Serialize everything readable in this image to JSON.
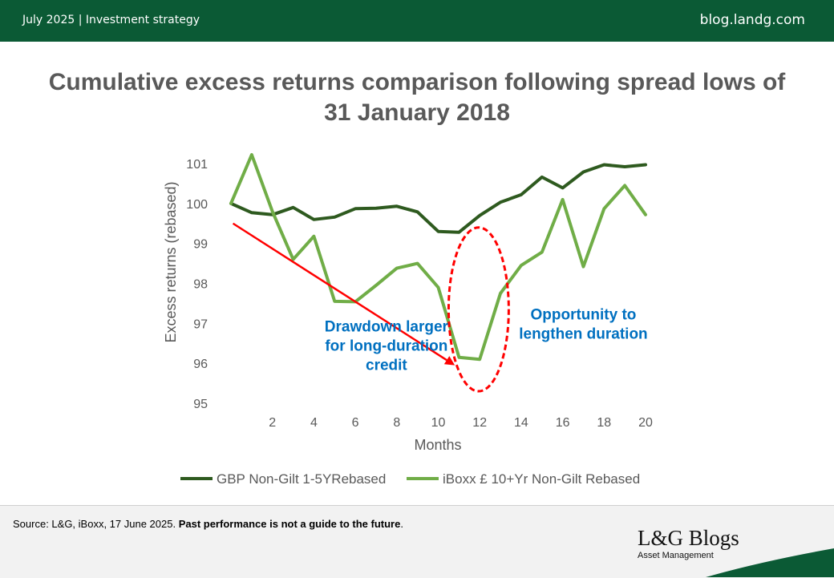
{
  "header": {
    "left_text": "July 2025 | Investment strategy",
    "right_text": "blog.landg.com"
  },
  "chart_data": {
    "type": "line",
    "title": "Cumulative excess returns comparison following spread lows of 31 January 2018",
    "xlabel": "Months",
    "ylabel": "Excess returns (rebased)",
    "x": [
      0,
      1,
      2,
      3,
      4,
      5,
      6,
      7,
      8,
      9,
      10,
      11,
      12,
      13,
      14,
      15,
      16,
      17,
      18,
      19,
      20
    ],
    "x_ticks": [
      2,
      4,
      6,
      8,
      10,
      12,
      14,
      16,
      18,
      20
    ],
    "y_ticks": [
      95,
      96,
      97,
      98,
      99,
      100,
      101
    ],
    "xlim": [
      0,
      20
    ],
    "ylim": [
      95,
      101
    ],
    "grid": false,
    "legend_position": "bottom",
    "series": [
      {
        "name": "GBP Non-Gilt 1-5YRebased",
        "color": "#2e5a1f",
        "values": [
          100.0,
          99.77,
          99.72,
          99.9,
          99.6,
          99.66,
          99.87,
          99.88,
          99.93,
          99.79,
          99.3,
          99.28,
          99.7,
          100.03,
          100.22,
          100.66,
          100.39,
          100.79,
          100.97,
          100.92,
          100.97
        ]
      },
      {
        "name": "iBoxx £ 10+Yr Non-Gilt Rebased",
        "color": "#70ad47",
        "values": [
          100.0,
          101.22,
          99.8,
          98.6,
          99.18,
          97.55,
          97.54,
          97.95,
          98.38,
          98.5,
          97.9,
          96.15,
          96.1,
          97.75,
          98.45,
          98.78,
          100.1,
          98.42,
          99.87,
          100.45,
          99.72
        ]
      }
    ],
    "annotations": [
      {
        "text_lines": [
          "Drawdown larger",
          "for long-duration",
          "credit"
        ],
        "color": "#0070c0",
        "at_x": 7.5,
        "at_y": 96.8
      },
      {
        "text_lines": [
          "Opportunity to",
          "lengthen duration"
        ],
        "color": "#0070c0",
        "at_x": 17.0,
        "at_y": 97.1
      }
    ],
    "arrow": {
      "color": "#ff0000",
      "from": [
        0.1,
        99.5
      ],
      "to": [
        10.8,
        95.95
      ]
    },
    "ellipse": {
      "color": "#ff0000",
      "center": [
        11.95,
        97.35
      ],
      "rx_months": 1.45,
      "ry_units": 2.05
    }
  },
  "footer": {
    "source_text": "Source: L&G, iBoxx, 17 June 2025. ",
    "source_bold": "Past performance is not a guide to the future",
    "source_end": ".",
    "brand_name": "L&G Blogs",
    "brand_sub": "Asset Management",
    "brand_swoosh_color": "#0b5a35"
  }
}
